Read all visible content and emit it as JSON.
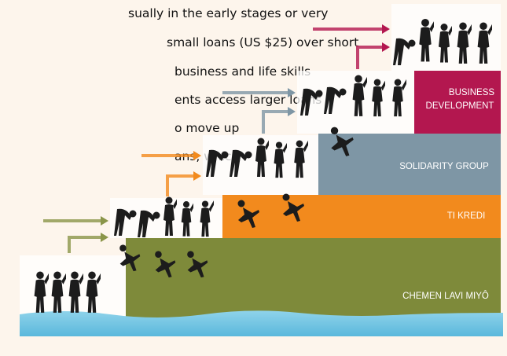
{
  "paragraph_lines": [
    "sually in the early stages or very",
    "small loans (US $25) over short",
    "business and life skills",
    "ents access larger loans",
    "o move up",
    "ans, which"
  ],
  "steps": [
    {
      "label_lines": [
        "BUSINESS",
        "DEVELOPMENT"
      ]
    },
    {
      "label_lines": [
        "SOLIDARITY GROUP"
      ]
    },
    {
      "label_lines": [
        "TI KREDI"
      ]
    },
    {
      "label_lines": [
        "CHEMEN LAVI MIYÔ"
      ]
    }
  ]
}
